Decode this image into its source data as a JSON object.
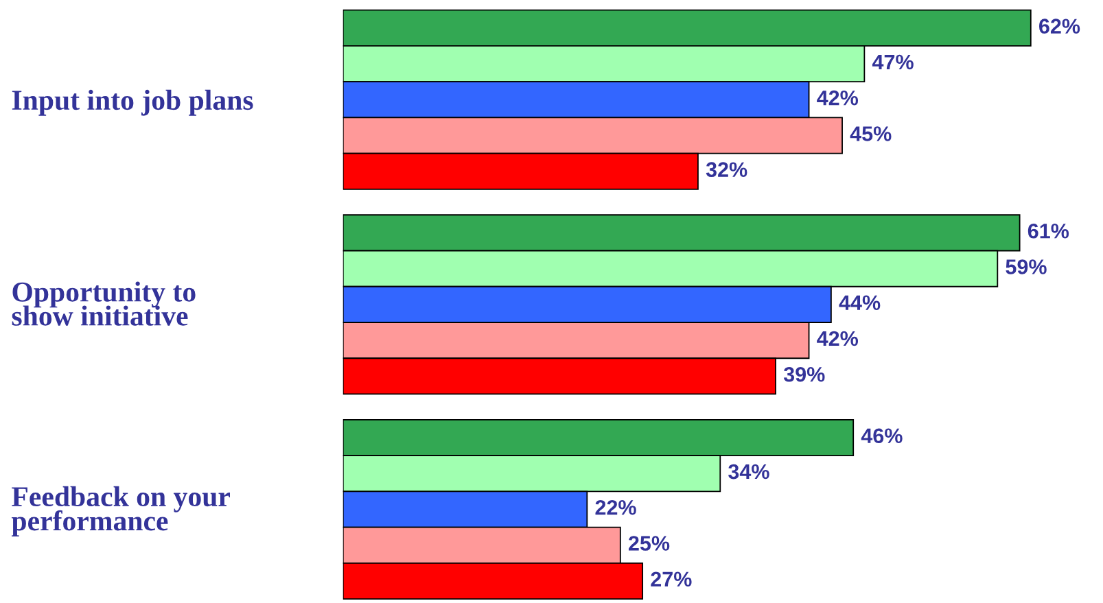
{
  "chart_data": {
    "type": "bar",
    "orientation": "horizontal",
    "categories": [
      "Input into job plans",
      "Opportunity to\nshow initiative",
      "Feedback on your\nperformance"
    ],
    "series": [
      {
        "color": "#33a853",
        "values": [
          62,
          61,
          46
        ],
        "value_labels": [
          "62%",
          "61%",
          "46%"
        ]
      },
      {
        "color": "#a0ffb0",
        "values": [
          47,
          59,
          34
        ],
        "value_labels": [
          "47%",
          "59%",
          "34%"
        ]
      },
      {
        "color": "#3366ff",
        "values": [
          42,
          44,
          22
        ],
        "value_labels": [
          "42%",
          "44%",
          "22%"
        ]
      },
      {
        "color": "#ff9999",
        "values": [
          45,
          42,
          25
        ],
        "value_labels": [
          "45%",
          "42%",
          "25%"
        ]
      },
      {
        "color": "#ff0000",
        "values": [
          32,
          39,
          27
        ],
        "value_labels": [
          "32%",
          "39%",
          "27%"
        ]
      }
    ],
    "tick_labels": "y",
    "grid": false,
    "legend": false
  }
}
